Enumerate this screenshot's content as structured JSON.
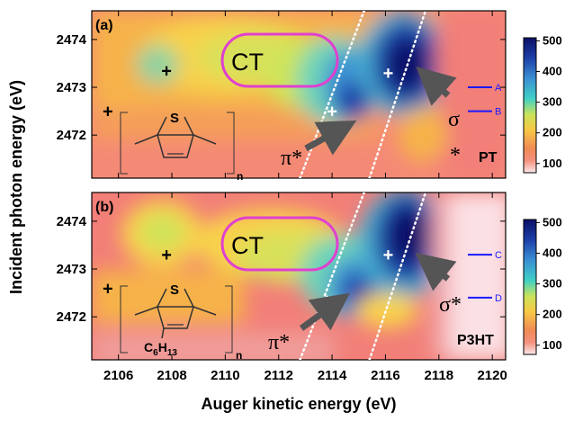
{
  "chart_data": [
    {
      "type": "heatmap",
      "panel_label": "(a)",
      "sample": "PT",
      "xlim": [
        2105,
        2120.5
      ],
      "ylim": [
        2471.1,
        2474.6
      ],
      "features": [
        {
          "label": "+",
          "x": 2116.1,
          "y": 2473.3,
          "marker_color": "#ffffff"
        },
        {
          "label": "+",
          "x": 2114.0,
          "y": 2472.5,
          "marker_color": "#ffffff"
        },
        {
          "label": "+",
          "x": 2107.8,
          "y": 2473.35,
          "marker_color": "#000000"
        },
        {
          "label": "+",
          "x": 2105.6,
          "y": 2472.5,
          "marker_color": "#000000"
        }
      ],
      "annotations": {
        "ct": "CT",
        "pi": "π*",
        "sigma": "σ",
        "sigma_star": "*"
      },
      "energy_levels": [
        {
          "label": "A",
          "y": 2473.0
        },
        {
          "label": "B",
          "y": 2472.5
        }
      ],
      "molecule": {
        "atom": "S",
        "subscript": "n"
      }
    },
    {
      "type": "heatmap",
      "panel_label": "(b)",
      "sample": "P3HT",
      "xlim": [
        2105,
        2120.5
      ],
      "ylim": [
        2471.1,
        2474.6
      ],
      "features": [
        {
          "label": "+",
          "x": 2116.1,
          "y": 2473.3,
          "marker_color": "#ffffff"
        },
        {
          "label": "+",
          "x": 2113.8,
          "y": 2472.35,
          "marker_color": "#ffffff"
        },
        {
          "label": "+",
          "x": 2107.8,
          "y": 2473.3,
          "marker_color": "#000000"
        },
        {
          "label": "+",
          "x": 2105.6,
          "y": 2472.6,
          "marker_color": "#000000"
        }
      ],
      "annotations": {
        "ct": "CT",
        "pi": "π*",
        "sigma": "σ*"
      },
      "energy_levels": [
        {
          "label": "C",
          "y": 2473.3
        },
        {
          "label": "D",
          "y": 2472.4
        }
      ],
      "molecule": {
        "atom": "S",
        "subscript": "n",
        "side_chain": "C",
        "side_chain_sub1": "6",
        "side_chain_mid": "H",
        "side_chain_sub2": "13"
      }
    }
  ],
  "xlabel": "Auger kinetic energy (eV)",
  "ylabel": "Incident photon energy (eV)",
  "xticks": [
    "2106",
    "2108",
    "2110",
    "2112",
    "2114",
    "2116",
    "2118",
    "2120"
  ],
  "yticks": [
    "2472",
    "2473",
    "2474"
  ],
  "colorbar": {
    "range": [
      70,
      510
    ],
    "ticks": [
      "500",
      "400",
      "300",
      "200",
      "100"
    ],
    "colors": [
      "#fce8ea",
      "#f4917e",
      "#f08a55",
      "#f8c945",
      "#cbe35a",
      "#3fd0c6",
      "#3a8fd4",
      "#1c3fa8",
      "#0b1066"
    ]
  },
  "diagonal_lines": [
    {
      "x1": 2112.8,
      "y1": 2471.1,
      "x2": 2115.2,
      "y2": 2474.6
    },
    {
      "x1": 2115.4,
      "y1": 2471.1,
      "x2": 2117.5,
      "y2": 2474.6
    }
  ]
}
